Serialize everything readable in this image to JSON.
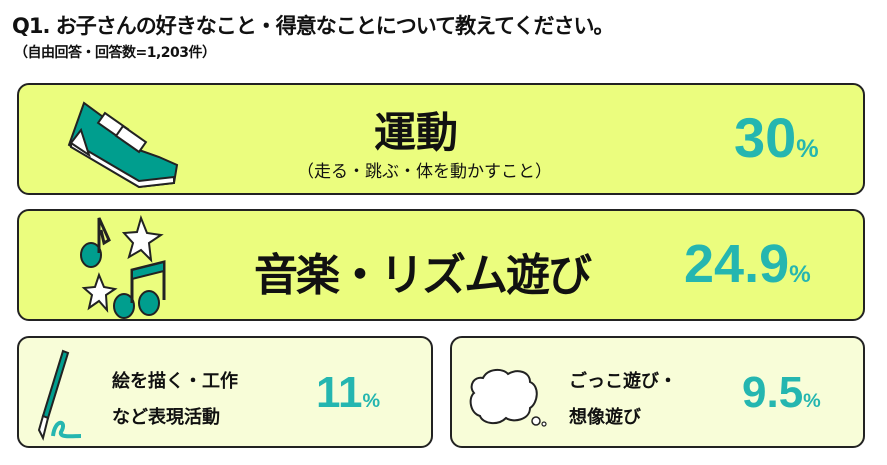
{
  "title": "Q1. お子さんの好きなこと・得意なことについて教えてください。",
  "subtitle": "（自由回答・回答数=1,203件）",
  "items": [
    {
      "label": "運動",
      "note": "（走る・跳ぶ・体を動かすこと）",
      "value": "30",
      "unit": "%",
      "icon": "sneaker-icon"
    },
    {
      "label": "音楽・リズム遊び",
      "value": "24.9",
      "unit": "%",
      "icon": "music-notes-stars-icon"
    },
    {
      "label_line1": "絵を描く・工作",
      "label_line2": "など表現活動",
      "value": "11",
      "unit": "%",
      "icon": "paintbrush-icon"
    },
    {
      "label_line1": "ごっこ遊び・",
      "label_line2": "想像遊び",
      "value": "9.5",
      "unit": "%",
      "icon": "thought-bubble-icon"
    }
  ],
  "colors": {
    "accent": "#25b6b0",
    "icon": "#009e8e",
    "card_large": "#ebfd7e",
    "card_small": "#f8fdd8"
  }
}
